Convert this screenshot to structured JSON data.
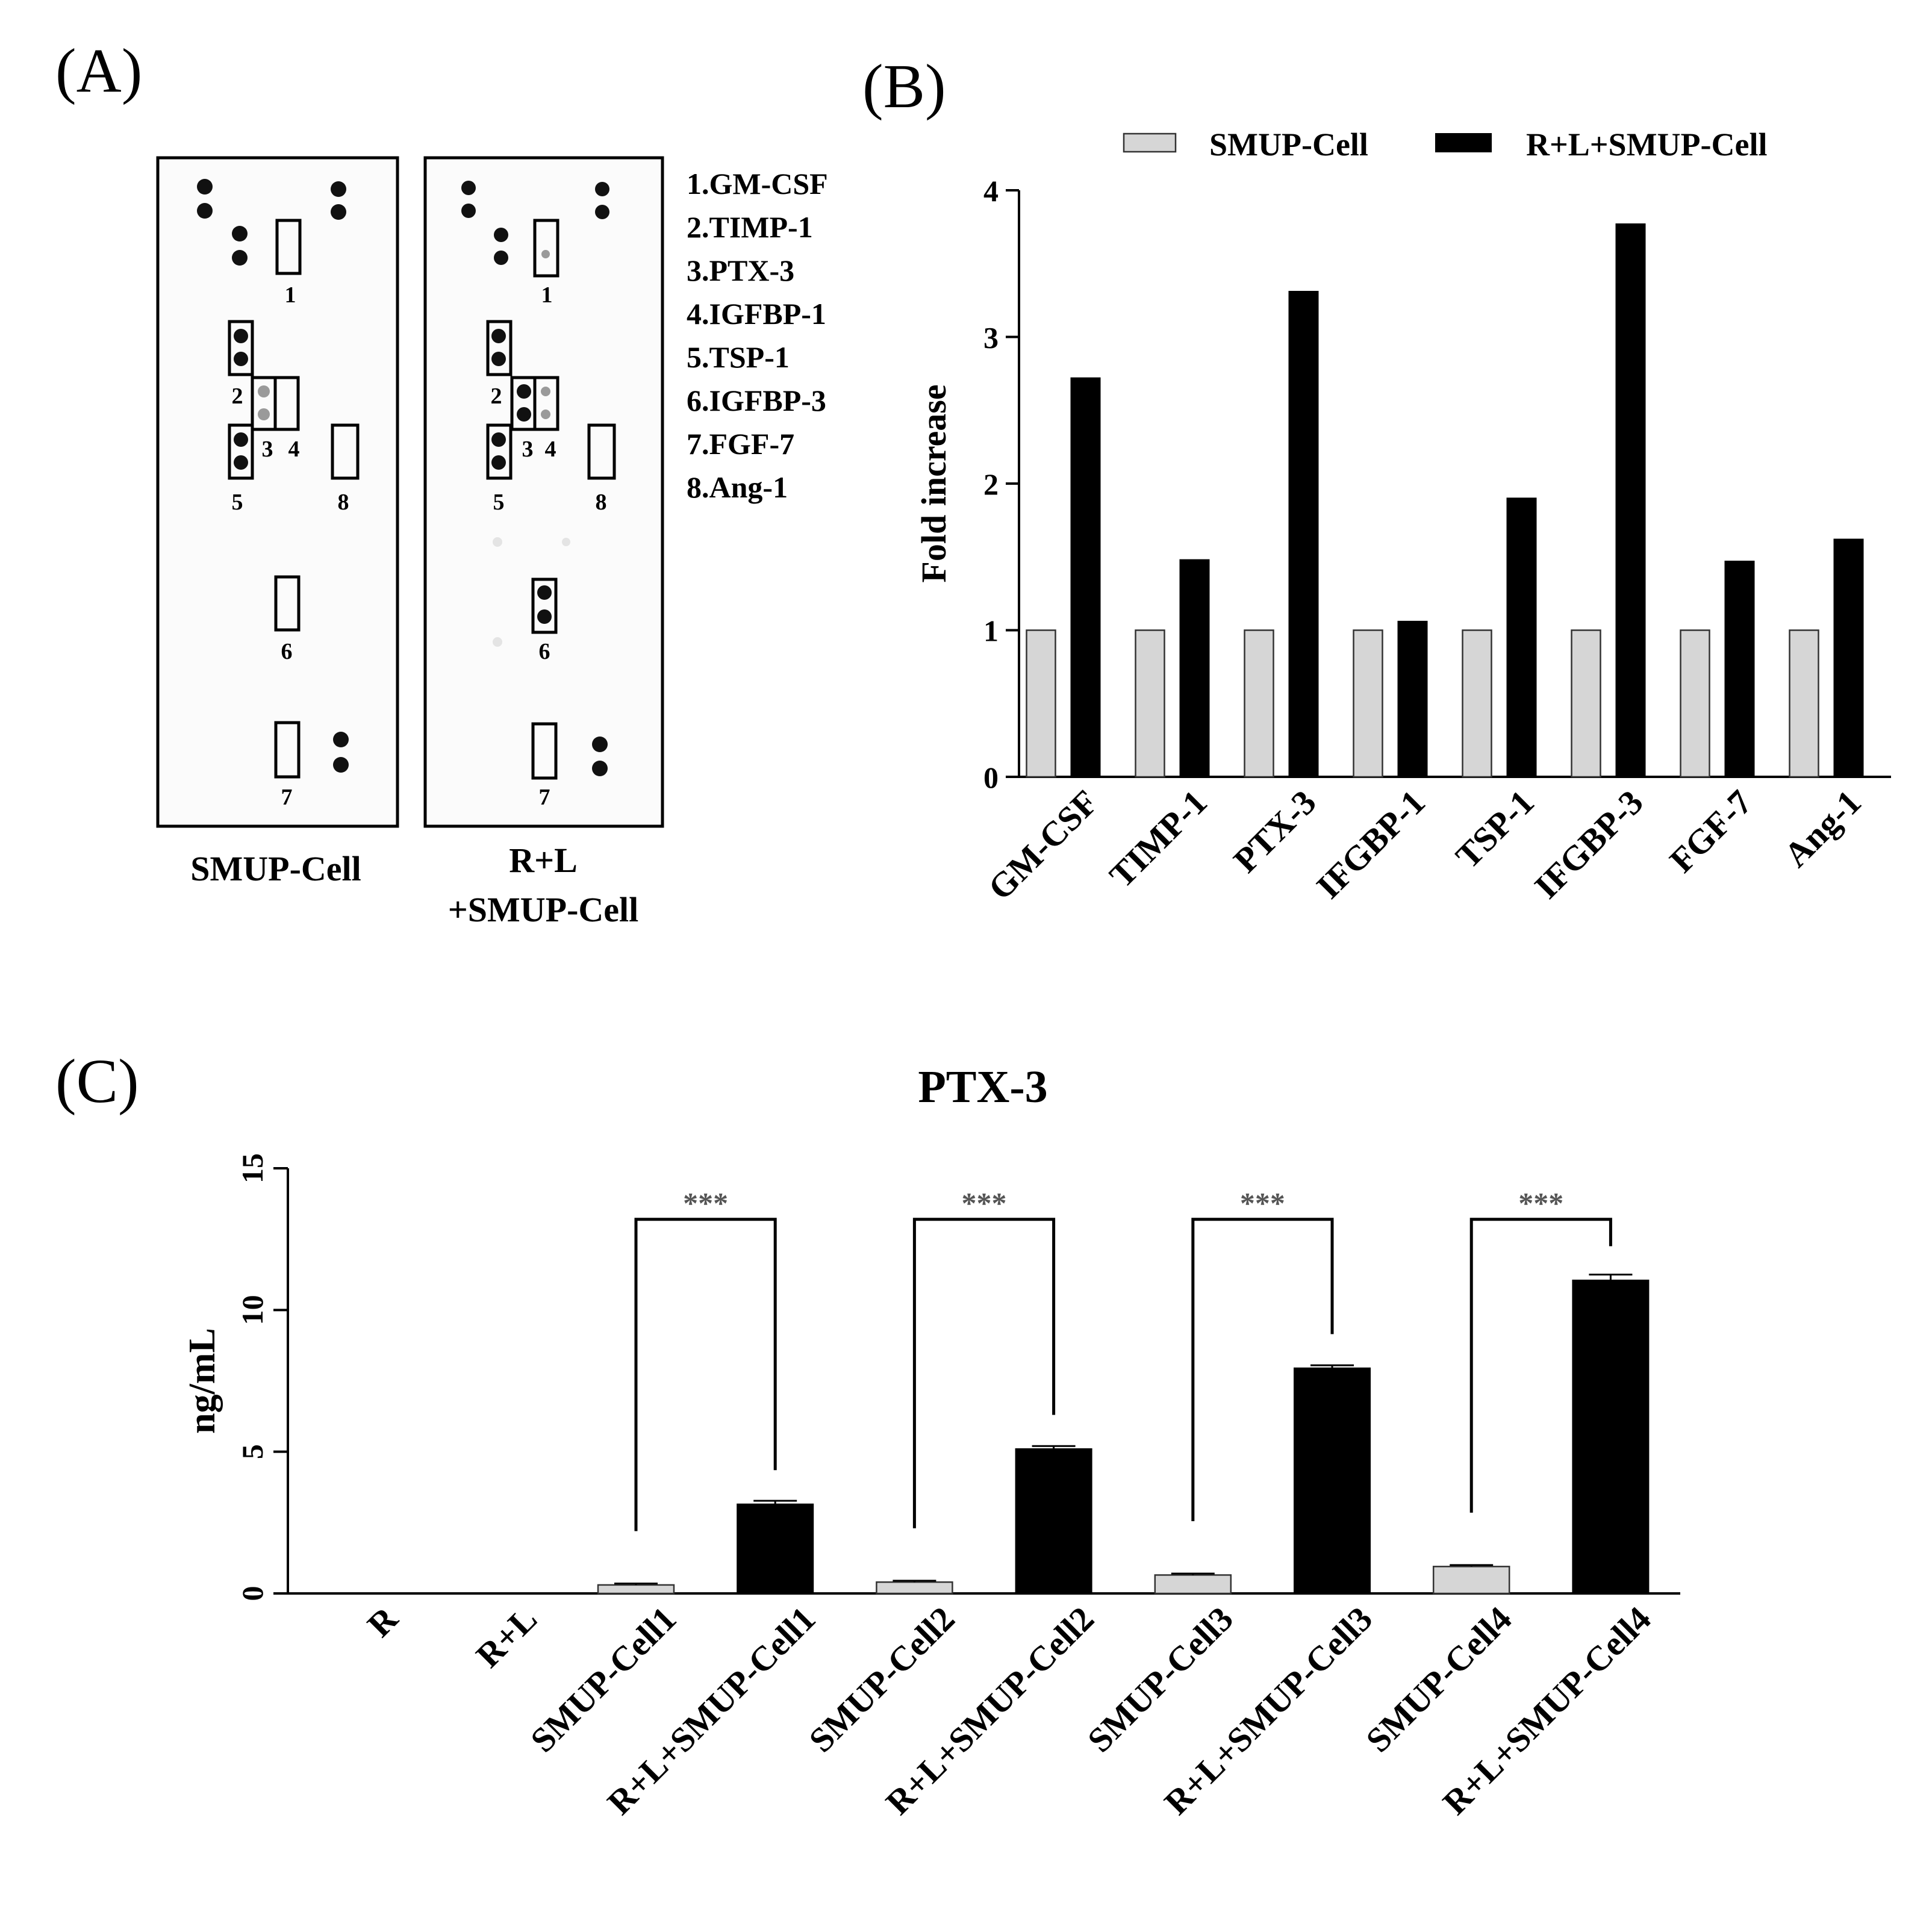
{
  "panels": {
    "a": {
      "label": "(A)",
      "membranes": [
        {
          "name": "SMUP-Cell",
          "caption_lines": [
            "SMUP-Cell"
          ],
          "box_labels": [
            "1",
            "2",
            "3",
            "4",
            "5",
            "8",
            "6",
            "7"
          ]
        },
        {
          "name": "R+L+SMUP-Cell",
          "caption_lines": [
            "R+L",
            "+SMUP-Cell"
          ],
          "box_labels": [
            "1",
            "2",
            "3",
            "4",
            "5",
            "8",
            "6",
            "7"
          ]
        }
      ],
      "legend_items": [
        "1.GM-CSF",
        "2.TIMP-1",
        "3.PTX-3",
        "4.IGFBP-1",
        "5.TSP-1",
        "6.IGFBP-3",
        "7.FGF-7",
        "8.Ang-1"
      ]
    },
    "b": {
      "label": "(B)"
    },
    "c": {
      "label": "(C)"
    }
  },
  "chart_data": [
    {
      "type": "bar",
      "title": "",
      "xlabel": "",
      "ylabel": "Fold increase",
      "ylim": [
        0,
        4
      ],
      "yticks": [
        "0",
        "1",
        "2",
        "3",
        "4"
      ],
      "grid": false,
      "legend_position": "top",
      "categories": [
        "GM-CSF",
        "TIMP-1",
        "PTX-3",
        "IFGBP-1",
        "TSP-1",
        "IFGBP-3",
        "FGF-7",
        "Ang-1"
      ],
      "series": [
        {
          "name": "SMUP-Cell",
          "color": "#d6d6d6",
          "values": [
            1,
            1,
            1,
            1,
            1,
            1,
            1,
            1
          ]
        },
        {
          "name": "R+L+SMUP-Cell",
          "color": "#000000",
          "values": [
            2.72,
            1.48,
            3.31,
            1.06,
            1.9,
            3.77,
            1.47,
            1.62
          ]
        }
      ]
    },
    {
      "type": "bar",
      "title": "PTX-3",
      "xlabel": "",
      "ylabel": "ng/mL",
      "ylim": [
        0,
        15
      ],
      "yticks": [
        "0",
        "5",
        "10",
        "15"
      ],
      "grid": false,
      "categories": [
        "R",
        "R+L",
        "SMUP-Cell1",
        "R+L+SMUP-Cell1",
        "SMUP-Cell2",
        "R+L+SMUP-Cell2",
        "SMUP-Cell3",
        "R+L+SMUP-Cell3",
        "SMUP-Cell4",
        "R+L+SMUP-Cell4"
      ],
      "values": [
        0,
        0,
        0.3,
        3.15,
        0.4,
        5.1,
        0.65,
        7.95,
        0.95,
        11.05
      ],
      "errors": [
        0,
        0,
        0.05,
        0.12,
        0.05,
        0.1,
        0.05,
        0.1,
        0.05,
        0.2
      ],
      "colors": [
        "#d6d6d6",
        "#000000",
        "#d6d6d6",
        "#000000",
        "#d6d6d6",
        "#000000",
        "#d6d6d6",
        "#000000",
        "#d6d6d6",
        "#000000"
      ],
      "significance": [
        {
          "from": "SMUP-Cell1",
          "to": "R+L+SMUP-Cell1",
          "label": "***"
        },
        {
          "from": "SMUP-Cell2",
          "to": "R+L+SMUP-Cell2",
          "label": "***"
        },
        {
          "from": "SMUP-Cell3",
          "to": "R+L+SMUP-Cell3",
          "label": "***"
        },
        {
          "from": "SMUP-Cell4",
          "to": "R+L+SMUP-Cell4",
          "label": "***"
        }
      ]
    }
  ]
}
